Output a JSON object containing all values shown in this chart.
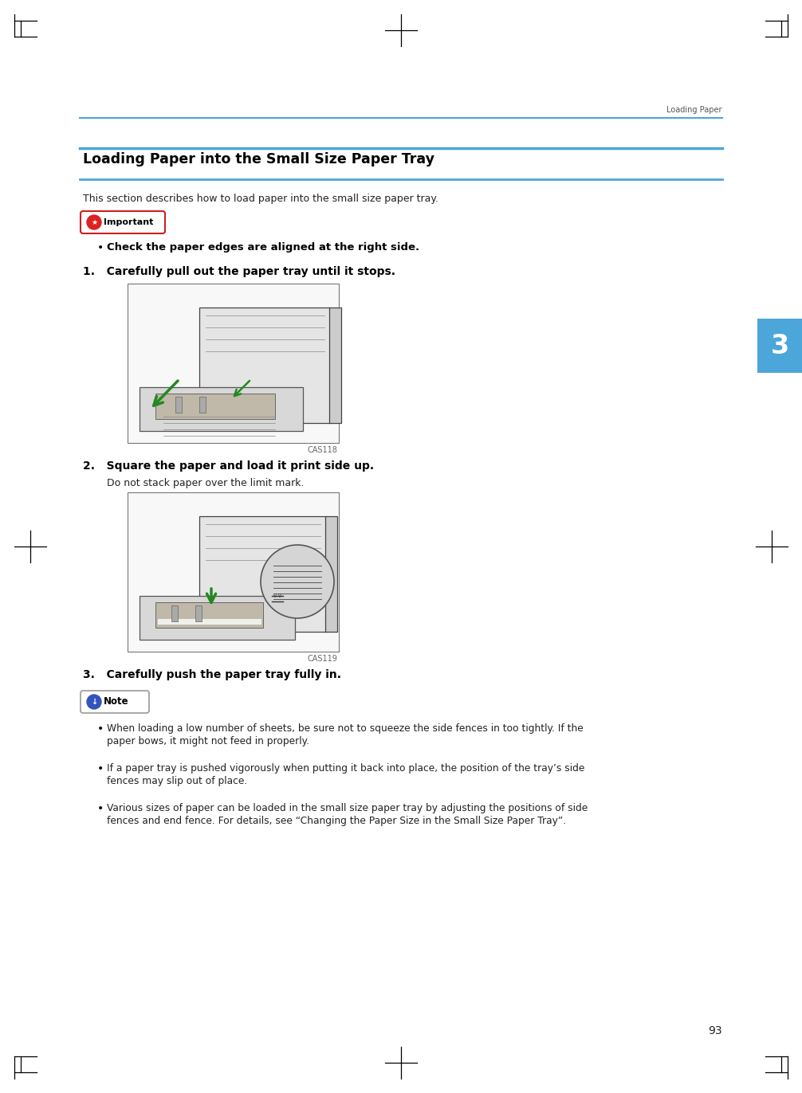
{
  "bg_color": "#ffffff",
  "header_text": "Loading Paper",
  "line_color": "#4da6d9",
  "title": "Loading Paper into the Small Size Paper Tray",
  "intro": "This section describes how to load paper into the small size paper tray.",
  "important_label": "Important",
  "important_bullet": "Check the paper edges are aligned at the right side.",
  "step1": "1.   Carefully pull out the paper tray until it stops.",
  "step2": "2.   Square the paper and load it print side up.",
  "step2_sub": "Do not stack paper over the limit mark.",
  "step3": "3.   Carefully push the paper tray fully in.",
  "note_label": "Note",
  "note_bullet1_l1": "When loading a low number of sheets, be sure not to squeeze the side fences in too tightly. If the",
  "note_bullet1_l2": "paper bows, it might not feed in properly.",
  "note_bullet2_l1": "If a paper tray is pushed vigorously when putting it back into place, the position of the tray’s side",
  "note_bullet2_l2": "fences may slip out of place.",
  "note_bullet3_l1": "Various sizes of paper can be loaded in the small size paper tray by adjusting the positions of side",
  "note_bullet3_l2": "fences and end fence. For details, see “Changing the Paper Size in the Small Size Paper Tray”.",
  "img1_caption": "CAS118",
  "img2_caption": "CAS119",
  "page_num": "93",
  "tab_num": "3",
  "tab_color": "#4da6d9",
  "text_dark": "#222222",
  "important_red": "#dd2222",
  "note_blue": "#3355bb",
  "corner_color": "#000000"
}
